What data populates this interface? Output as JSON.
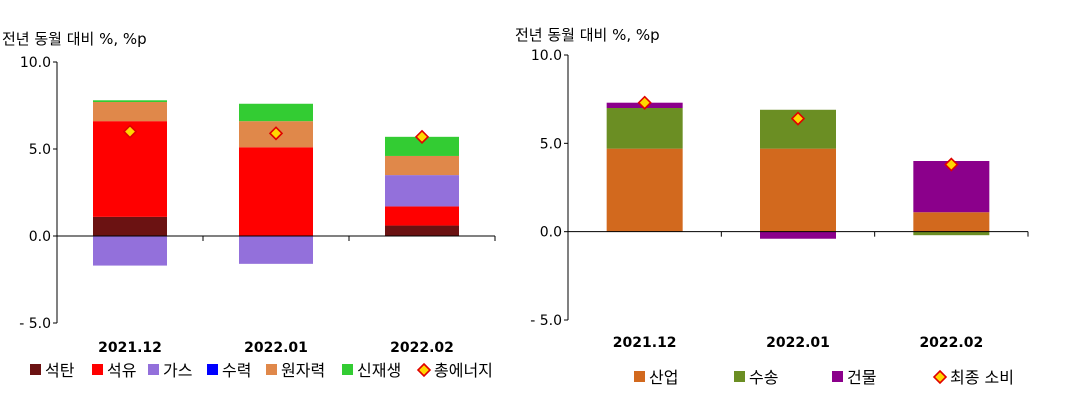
{
  "chart_data": [
    {
      "type": "bar",
      "stacked": true,
      "unit_label": "전년 동월 대비 %, %p",
      "categories": [
        "2021.12",
        "2022.01",
        "2022.02"
      ],
      "ylim": [
        -5.0,
        10.0
      ],
      "yticks": [
        "10.0",
        "5.0",
        "0.0",
        "- 5.0"
      ],
      "ytick_values": [
        10,
        5,
        0,
        -5
      ],
      "series": [
        {
          "name": "석탄",
          "color": "#6b1212",
          "values": [
            1.1,
            0.0,
            0.6
          ]
        },
        {
          "name": "석유",
          "color": "#ff0000",
          "values": [
            5.5,
            5.1,
            1.1
          ]
        },
        {
          "name": "가스",
          "color": "#9370db",
          "values": [
            -1.7,
            -1.6,
            1.8
          ]
        },
        {
          "name": "수력",
          "color": "#0000ff",
          "values": [
            0.0,
            0.0,
            0.0
          ]
        },
        {
          "name": "원자력",
          "color": "#e0884a",
          "values": [
            1.1,
            1.5,
            1.1
          ]
        },
        {
          "name": "신재생",
          "color": "#33cc33",
          "values": [
            0.1,
            1.0,
            1.1
          ]
        }
      ],
      "total": {
        "name": "총에너지",
        "color": "#ffd700",
        "edge": "#e00000",
        "values": [
          6.0,
          5.9,
          5.7
        ]
      }
    },
    {
      "type": "bar",
      "stacked": true,
      "unit_label": "전년 동월 대비 %, %p",
      "categories": [
        "2021.12",
        "2022.01",
        "2022.02"
      ],
      "ylim": [
        -5.0,
        10.0
      ],
      "yticks": [
        "10.0",
        "5.0",
        "0.0",
        "- 5.0"
      ],
      "ytick_values": [
        10,
        5,
        0,
        -5
      ],
      "series": [
        {
          "name": "산업",
          "color": "#d2691e",
          "values": [
            4.7,
            4.7,
            1.1
          ]
        },
        {
          "name": "수송",
          "color": "#6b8e23",
          "values": [
            2.3,
            2.2,
            -0.2
          ]
        },
        {
          "name": "건물",
          "color": "#8b008b",
          "values": [
            0.3,
            -0.4,
            2.9
          ]
        }
      ],
      "total": {
        "name": "최종 소비",
        "color": "#ffd700",
        "edge": "#e00000",
        "values": [
          7.3,
          6.4,
          3.8
        ]
      }
    }
  ]
}
